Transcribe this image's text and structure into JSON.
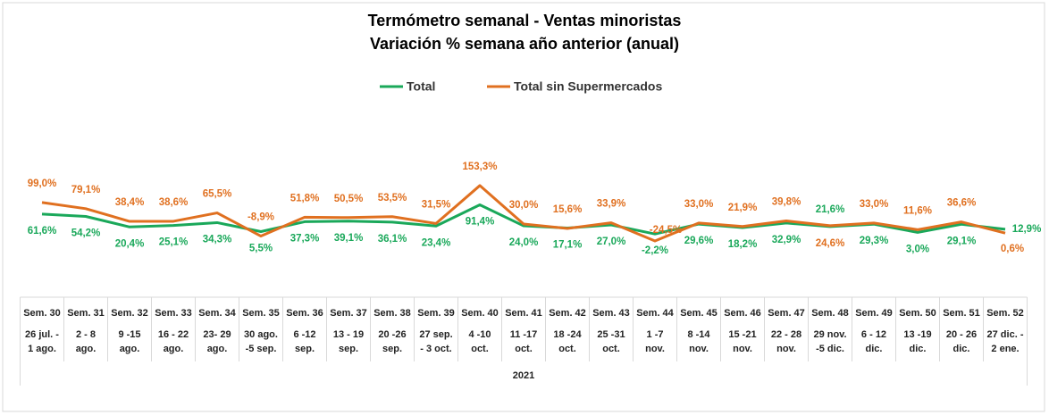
{
  "chart_data": {
    "type": "line",
    "title": "Termómetro semanal - Ventas minoristas",
    "subtitle": "Variación % semana año anterior (anual)",
    "categories": [
      "Sem. 30",
      "Sem. 31",
      "Sem. 32",
      "Sem. 33",
      "Sem. 34",
      "Sem. 35",
      "Sem. 36",
      "Sem. 37",
      "Sem. 38",
      "Sem. 39",
      "Sem. 40",
      "Sem. 41",
      "Sem. 42",
      "Sem. 43",
      "Sem. 44",
      "Sem. 45",
      "Sem. 46",
      "Sem. 47",
      "Sem. 48",
      "Sem. 49",
      "Sem. 50",
      "Sem. 51",
      "Sem. 52"
    ],
    "category_dates": [
      [
        "26 jul. -",
        "1 ago."
      ],
      [
        "2 - 8",
        "ago."
      ],
      [
        "9 -15",
        "ago."
      ],
      [
        "16 - 22",
        "ago."
      ],
      [
        "23- 29",
        "ago."
      ],
      [
        "30 ago.",
        "-5 sep."
      ],
      [
        "6 -12",
        "sep."
      ],
      [
        "13 - 19",
        "sep."
      ],
      [
        "20 -26",
        "sep."
      ],
      [
        "27 sep.",
        "- 3 oct."
      ],
      [
        "4 -10",
        "oct."
      ],
      [
        "11 -17",
        "oct."
      ],
      [
        "18 -24",
        "oct."
      ],
      [
        "25 -31",
        "oct."
      ],
      [
        "1 -7",
        "nov."
      ],
      [
        "8 -14",
        "nov."
      ],
      [
        "15 -21",
        "nov."
      ],
      [
        "22 - 28",
        "nov."
      ],
      [
        "29 nov.",
        "-5 dic."
      ],
      [
        "6 - 12",
        "dic."
      ],
      [
        "13 -19",
        "dic."
      ],
      [
        "20 - 26",
        "dic."
      ],
      [
        "27 dic. -",
        "2 ene."
      ]
    ],
    "group_label": "2021",
    "series": [
      {
        "name": "Total",
        "color": "#1aa85a",
        "values": [
          61.6,
          54.2,
          20.4,
          25.1,
          34.3,
          5.5,
          37.3,
          39.1,
          36.1,
          23.4,
          91.4,
          24.0,
          17.1,
          27.0,
          -2.2,
          29.6,
          18.2,
          32.9,
          21.6,
          29.3,
          3.0,
          29.1,
          12.9
        ],
        "value_labels": [
          "61,6%",
          "54,2%",
          "20,4%",
          "25,1%",
          "34,3%",
          "5,5%",
          "37,3%",
          "39,1%",
          "36,1%",
          "23,4%",
          "91,4%",
          "24,0%",
          "17,1%",
          "27,0%",
          "-2,2%",
          "29,6%",
          "18,2%",
          "32,9%",
          "21,6%",
          "29,3%",
          "3,0%",
          "29,1%",
          "12,9%"
        ]
      },
      {
        "name": "Total sin Supermercados",
        "color": "#e07020",
        "values": [
          99.0,
          79.1,
          38.4,
          38.6,
          65.5,
          -8.9,
          51.8,
          50.5,
          53.5,
          31.5,
          153.3,
          30.0,
          15.6,
          33.9,
          -24.5,
          33.0,
          21.9,
          39.8,
          24.6,
          33.0,
          11.6,
          36.6,
          0.6
        ],
        "value_labels": [
          "99,0%",
          "79,1%",
          "38,4%",
          "38,6%",
          "65,5%",
          "-8,9%",
          "51,8%",
          "50,5%",
          "53,5%",
          "31,5%",
          "153,3%",
          "30,0%",
          "15,6%",
          "33,9%",
          "-24,5%",
          "33,0%",
          "21,9%",
          "39,8%",
          "24,6%",
          "33,0%",
          "11,6%",
          "36,6%",
          "0,6%"
        ]
      }
    ],
    "ylim": [
      -100,
      250
    ],
    "legend": "top"
  }
}
